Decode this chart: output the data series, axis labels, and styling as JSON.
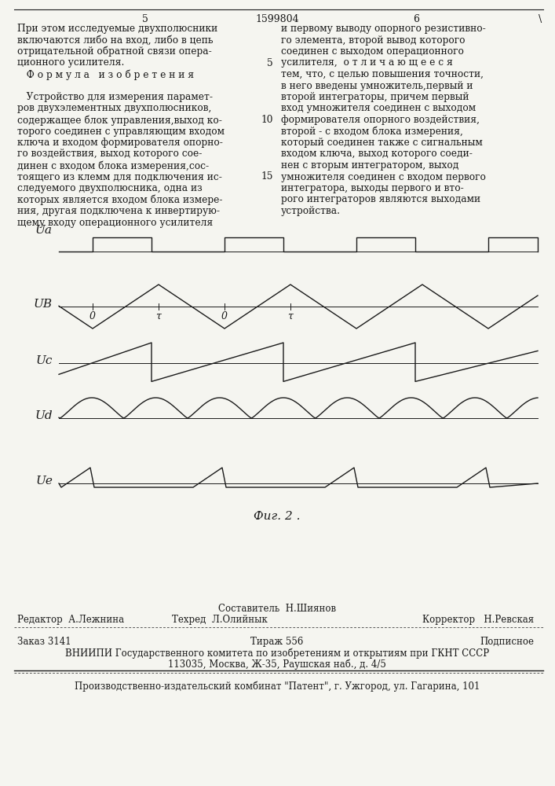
{
  "page_title": "1599804",
  "bg_color": "#f5f5f0",
  "text_color": "#1a1a1a",
  "line_color": "#1a1a1a",
  "left_lines": [
    "При этом исследуемые двухполюсники",
    "включаются либо на вход, либо в цепь",
    "отрицательной обратной связи опера-",
    "ционного усилителя.",
    "   Ф о р м у л а   и з о б р е т е н и я",
    "",
    "   Устройство для измерения парамет-",
    "ров двухэлементных двухполюсников,",
    "содержащее блок управления,выход ко-",
    "торого соединен с управляющим входом",
    "ключа и входом формирователя опорно-",
    "го воздействия, выход которого сое-",
    "динен с входом блока измерения,сос-",
    "тоящего из клемм для подключения ис-",
    "следуемого двухполюсника, одна из",
    "которых является входом блока измере-",
    "ния, другая подключена к инвертирую-",
    "щему входу операционного усилителя"
  ],
  "right_lines": [
    [
      "и первому выводу опорного резистивно-",
      null
    ],
    [
      "го элемента, второй вывод которого",
      null
    ],
    [
      "соединен с выходом операционного",
      null
    ],
    [
      "усилителя,  о т л и ч а ю щ е е с я",
      "5"
    ],
    [
      "тем, что, с целью повышения точности,",
      null
    ],
    [
      "в него введены умножитель,первый и",
      null
    ],
    [
      "второй интеграторы, причем первый",
      null
    ],
    [
      "вход умножителя соединен с выходом",
      null
    ],
    [
      "формирователя опорного воздействия,",
      "10"
    ],
    [
      "второй - с входом блока измерения,",
      null
    ],
    [
      "который соединен также с сигнальным",
      null
    ],
    [
      "входом ключа, выход которого соеди-",
      null
    ],
    [
      "нен с вторым интегратором, выход",
      null
    ],
    [
      "умножителя соединен с входом первого",
      "15"
    ],
    [
      "интегратора, выходы первого и вто-",
      null
    ],
    [
      "рого интеграторов являются выходами",
      null
    ],
    [
      "устройства.",
      null
    ]
  ],
  "fig_caption": "Фиг. 2 .",
  "footer_composer": "Составитель  Н.Шиянов",
  "footer_techred": "Техред  Л.Олийнык",
  "footer_editor": "Редактор  А.Лежнина",
  "footer_corrector": "Корректор   Н.Ревская",
  "footer_order": "Заказ 3141",
  "footer_tirazh": "Тираж 556",
  "footer_podpisnoe": "Подписное",
  "footer_vniipи": "ВНИИПИ Государственного комитета по изобретениям и открытиям при ГКНТ СССР",
  "footer_address": "113035, Москва, Ж-35, Раушская наб., д. 4/5",
  "footer_patent": "Производственно-издательский комбинат \"Патент\", г. Ужгород, ул. Гагарина, 101"
}
